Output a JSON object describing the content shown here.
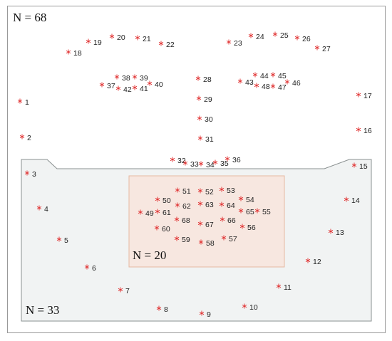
{
  "labels": {
    "total": "N = 68",
    "inner": "N = 20",
    "contour": "N = 33"
  },
  "landmarks": [
    "1",
    "2",
    "3",
    "4",
    "5",
    "6",
    "7",
    "8",
    "9",
    "10",
    "11",
    "12",
    "13",
    "14",
    "15",
    "16",
    "17",
    "18",
    "19",
    "20",
    "21",
    "22",
    "23",
    "24",
    "25",
    "26",
    "27",
    "28",
    "29",
    "30",
    "31",
    "32",
    "33",
    "34",
    "35",
    "36",
    "37",
    "38",
    "39",
    "40",
    "41",
    "42",
    "43",
    "44",
    "45",
    "46",
    "47",
    "48",
    "49",
    "50",
    "51",
    "52",
    "53",
    "54",
    "55",
    "56",
    "57",
    "58",
    "59",
    "60",
    "61",
    "62",
    "63",
    "64",
    "65",
    "66",
    "67",
    "68"
  ]
}
